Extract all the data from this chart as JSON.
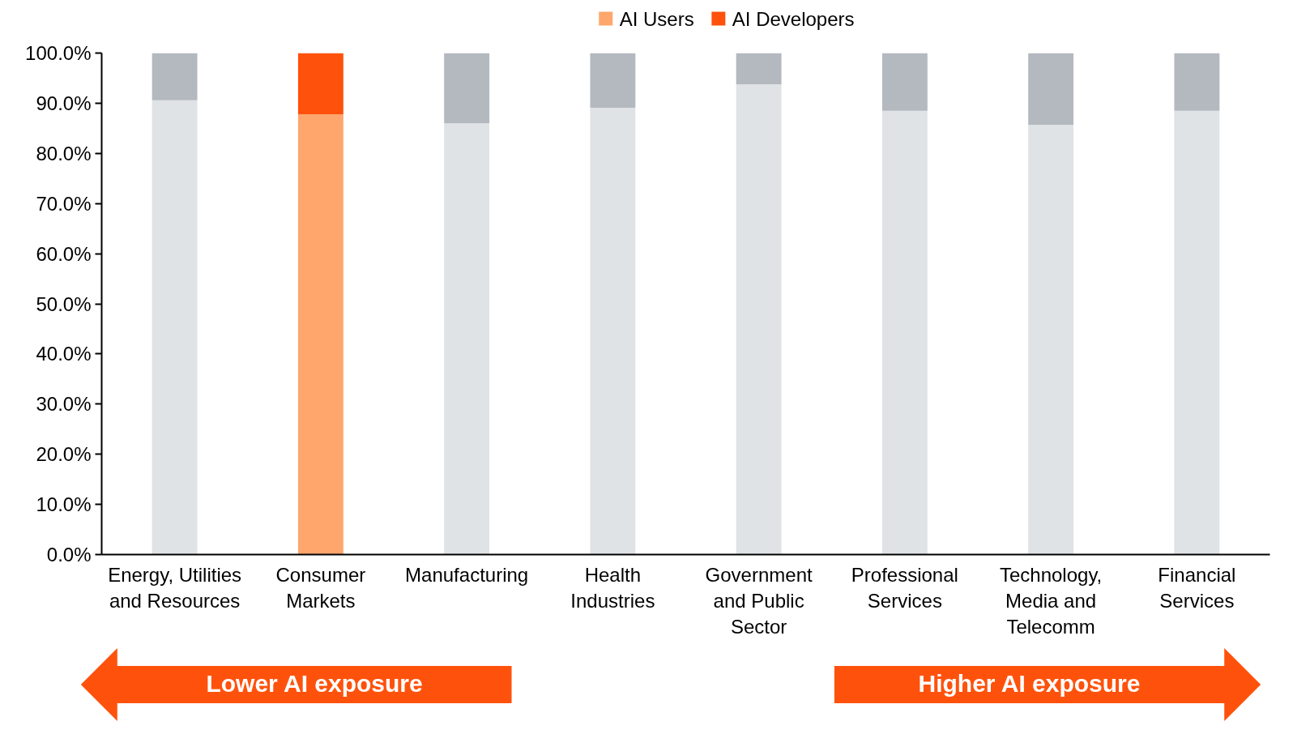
{
  "chart_data": {
    "type": "bar",
    "stacked": true,
    "categories": [
      "Energy, Utilities\nand Resources",
      "Consumer\nMarkets",
      "Manufacturing",
      "Health\nIndustries",
      "Government\nand Public\nSector",
      "Professional\nServices",
      "Technology,\nMedia and\nTelecomm",
      "Financial\nServices"
    ],
    "series": [
      {
        "name": "AI Users",
        "color": "#fea66c",
        "colors": [
          "#dfe3e6",
          "#fea66c",
          "#dfe3e6",
          "#dfe3e6",
          "#dfe3e6",
          "#dfe3e6",
          "#dfe3e6",
          "#dfe3e6"
        ],
        "values": [
          90.6,
          87.8,
          86.0,
          89.1,
          93.8,
          88.5,
          85.7,
          88.5
        ]
      },
      {
        "name": "AI Developers",
        "color": "#fe520c",
        "colors": [
          "#b4b9c0",
          "#fe520c",
          "#b4b9c0",
          "#b4b9c0",
          "#b4b9c0",
          "#b4b9c0",
          "#b4b9c0",
          "#b4b9c0"
        ],
        "values": [
          9.4,
          12.2,
          14.0,
          10.9,
          6.2,
          11.5,
          14.3,
          11.5
        ]
      }
    ],
    "ylim": [
      0,
      100
    ],
    "yticks": [
      {
        "value": 0,
        "label": "0.0%"
      },
      {
        "value": 10,
        "label": "10.0%"
      },
      {
        "value": 20,
        "label": "20.0%"
      },
      {
        "value": 30,
        "label": "30.0%"
      },
      {
        "value": 40,
        "label": "40.0%"
      },
      {
        "value": 50,
        "label": "50.0%"
      },
      {
        "value": 60,
        "label": "60.0%"
      },
      {
        "value": 70,
        "label": "70.0%"
      },
      {
        "value": 80,
        "label": "80.0%"
      },
      {
        "value": 90,
        "label": "90.0%"
      },
      {
        "value": 100,
        "label": "100.0%"
      }
    ],
    "legend": "top",
    "grid": false,
    "annotations": [
      "Lower AI exposure",
      "Higher AI exposure"
    ]
  }
}
